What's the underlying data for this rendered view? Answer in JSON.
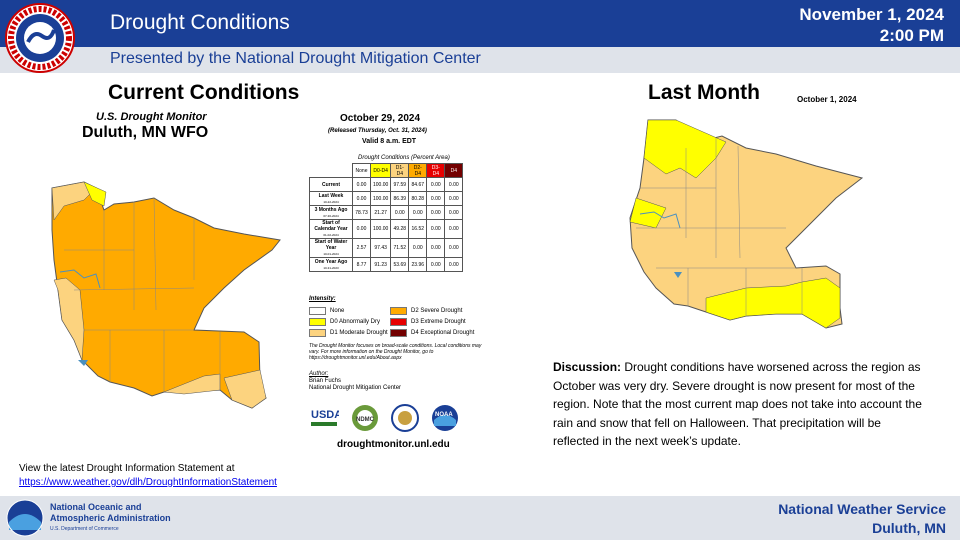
{
  "header": {
    "title": "Drought Conditions",
    "date": "November 1, 2024",
    "time": "2:00 PM",
    "subtitle": "Presented by the National Drought Mitigation Center"
  },
  "current": {
    "heading": "Current Conditions",
    "monitor_title": "U.S. Drought Monitor",
    "wfo": "Duluth, MN WFO",
    "date": "October 29, 2024",
    "released": "(Released Thursday, Oct. 31, 2024)",
    "valid": "Valid 8 a.m. EDT",
    "table_caption": "Drought Conditions (Percent Area)",
    "columns": [
      "None",
      "D0-D4",
      "D1-D4",
      "D2-D4",
      "D3-D4",
      "D4"
    ],
    "rows": [
      {
        "label": "Current",
        "sub": "",
        "values": [
          "0.00",
          "100.00",
          "97.59",
          "84.67",
          "0.00",
          "0.00"
        ]
      },
      {
        "label": "Last Week",
        "sub": "10-22-2024",
        "values": [
          "0.00",
          "100.00",
          "86.39",
          "80.28",
          "0.00",
          "0.00"
        ]
      },
      {
        "label": "3 Months Ago",
        "sub": "07-30-2024",
        "values": [
          "78.73",
          "21.27",
          "0.00",
          "0.00",
          "0.00",
          "0.00"
        ]
      },
      {
        "label": "Start of Calendar Year",
        "sub": "01-02-2024",
        "values": [
          "0.00",
          "100.00",
          "49.28",
          "16.52",
          "0.00",
          "0.00"
        ]
      },
      {
        "label": "Start of Water Year",
        "sub": "10-01-2024",
        "values": [
          "2.57",
          "97.43",
          "71.52",
          "0.00",
          "0.00",
          "0.00"
        ]
      },
      {
        "label": "One Year Ago",
        "sub": "10-31-2023",
        "values": [
          "8.77",
          "91.23",
          "53.69",
          "23.96",
          "0.00",
          "0.00"
        ]
      }
    ],
    "intensity_title": "Intensity:",
    "legend": [
      {
        "label": "None",
        "color": "#ffffff"
      },
      {
        "label": "D0 Abnormally Dry",
        "color": "#ffff00"
      },
      {
        "label": "D1 Moderate Drought",
        "color": "#fcd37f"
      },
      {
        "label": "D2 Severe Drought",
        "color": "#ffaa00"
      },
      {
        "label": "D3 Extreme Drought",
        "color": "#e60000"
      },
      {
        "label": "D4 Exceptional Drought",
        "color": "#730000"
      }
    ],
    "note": "The Drought Monitor focuses on broad-scale conditions. Local conditions may vary. For more information on the Drought Monitor, go to https://droughtmonitor.unl.edu/About.aspx",
    "author_title": "Author:",
    "author_name": "Brian Fuchs",
    "author_org": "National Drought Mitigation Center",
    "agencies": [
      "USDA",
      "NDMC",
      "NOAA"
    ],
    "website": "droughtmonitor.unl.edu"
  },
  "last_month": {
    "heading": "Last Month",
    "date": "October 1, 2024"
  },
  "discussion": {
    "label": "Discussion:",
    "text": " Drought conditions have worsened across the region as October was very dry. Severe drought is now present for most of the region. Note that the most current map does not take into account the rain and snow that fell on Halloween.  That precipitation will be reflected in the next week’s update."
  },
  "dsi": {
    "text": "View the latest Drought Information Statement at",
    "link": "https://www.weather.gov/dlh/DroughtInformationStatement"
  },
  "footer": {
    "noaa_line1": "National Oceanic and",
    "noaa_line2": "Atmospheric Administration",
    "noaa_line3": "U.S. Department of Commerce",
    "nws_line1": "National  Weather  Service",
    "nws_line2": "Duluth,  MN"
  },
  "colors": {
    "brand": "#1a3f96",
    "d1": "#fcd37f",
    "d2": "#ffaa00",
    "d0": "#ffff00"
  }
}
